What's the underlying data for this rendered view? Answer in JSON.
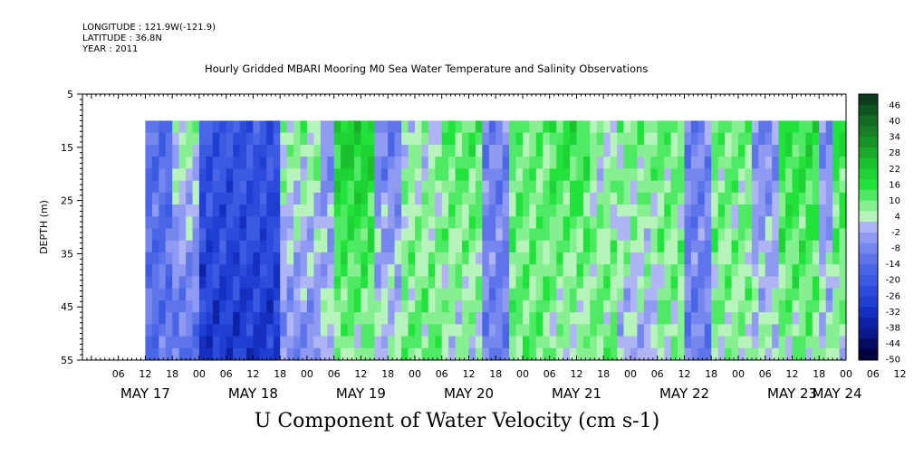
{
  "header": {
    "longitude": "LONGITUDE : 121.9W(-121.9)",
    "latitude": "LATITUDE : 36.8N",
    "year": "YEAR : 2011"
  },
  "chart_data": {
    "type": "heatmap",
    "title": "Hourly Gridded MBARI Mooring M0 Sea Water Temperature and Salinity Observations",
    "variable": "U Component of Water Velocity (cm s-1)",
    "ylabel": "DEPTH (m)",
    "ylim": [
      55,
      5
    ],
    "yticks": [
      5,
      15,
      25,
      35,
      45,
      55
    ],
    "xlim": [
      "2011-05-16T22:00",
      "2011-05-24T00:00"
    ],
    "data_start": "2011-05-17T12:00",
    "data_depth_range": [
      10,
      55
    ],
    "xtick_hours": [
      "06",
      "12",
      "18",
      "00",
      "06",
      "12",
      "18",
      "00",
      "06",
      "12",
      "18",
      "00",
      "06",
      "12",
      "18",
      "00",
      "06",
      "12",
      "18",
      "00",
      "06",
      "12",
      "18",
      "00",
      "06",
      "12",
      "18",
      "00",
      "06",
      "12",
      "18",
      "00"
    ],
    "xtick_days": [
      "MAY 17",
      "MAY 18",
      "MAY 19",
      "MAY 20",
      "MAY 21",
      "MAY 22",
      "MAY 23",
      "MAY 24"
    ],
    "colorbar": {
      "labels": [
        "46",
        "40",
        "34",
        "28",
        "22",
        "16",
        "10",
        "4",
        "-2",
        "-8",
        "-14",
        "-20",
        "-26",
        "-32",
        "-38",
        "-44",
        "-50"
      ],
      "colors": [
        "#0b3d1c",
        "#10551f",
        "#136b22",
        "#167f25",
        "#189426",
        "#1aab2a",
        "#1bc02d",
        "#1ed334",
        "#22e33c",
        "#4fea63",
        "#86ef90",
        "#b6f4bc",
        "#aeb4f4",
        "#8f9af2",
        "#7586ee",
        "#5d74ea",
        "#4a66e6",
        "#3a5ae2",
        "#2c4cdc",
        "#1f3fd2",
        "#1530c0",
        "#0e22a6",
        "#09188a",
        "#040c60",
        "#000040"
      ]
    },
    "segments": [
      {
        "from": "2011-05-17T12:00",
        "to": "2011-05-17T18:00",
        "surface": -14,
        "deep": -12
      },
      {
        "from": "2011-05-17T18:00",
        "to": "2011-05-18T00:00",
        "surface": 6,
        "deep": -14
      },
      {
        "from": "2011-05-18T00:00",
        "to": "2011-05-18T18:00",
        "surface": -20,
        "deep": -30
      },
      {
        "from": "2011-05-18T18:00",
        "to": "2011-05-19T03:00",
        "surface": 8,
        "deep": -8
      },
      {
        "from": "2011-05-19T03:00",
        "to": "2011-05-19T06:00",
        "surface": -8,
        "deep": 4
      },
      {
        "from": "2011-05-19T06:00",
        "to": "2011-05-19T15:00",
        "surface": 22,
        "deep": 6
      },
      {
        "from": "2011-05-19T15:00",
        "to": "2011-05-19T21:00",
        "surface": -10,
        "deep": 4
      },
      {
        "from": "2011-05-19T21:00",
        "to": "2011-05-20T06:00",
        "surface": 4,
        "deep": 10
      },
      {
        "from": "2011-05-20T06:00",
        "to": "2011-05-20T15:00",
        "surface": 12,
        "deep": 4
      },
      {
        "from": "2011-05-20T15:00",
        "to": "2011-05-20T21:00",
        "surface": -8,
        "deep": -10
      },
      {
        "from": "2011-05-20T21:00",
        "to": "2011-05-21T06:00",
        "surface": 10,
        "deep": 10
      },
      {
        "from": "2011-05-21T06:00",
        "to": "2011-05-21T15:00",
        "surface": 16,
        "deep": 4
      },
      {
        "from": "2011-05-21T15:00",
        "to": "2011-05-21T21:00",
        "surface": 4,
        "deep": 10
      },
      {
        "from": "2011-05-21T21:00",
        "to": "2011-05-22T06:00",
        "surface": 10,
        "deep": -2
      },
      {
        "from": "2011-05-22T06:00",
        "to": "2011-05-22T12:00",
        "surface": 10,
        "deep": 6
      },
      {
        "from": "2011-05-22T12:00",
        "to": "2011-05-22T18:00",
        "surface": -8,
        "deep": -10
      },
      {
        "from": "2011-05-22T18:00",
        "to": "2011-05-23T03:00",
        "surface": 10,
        "deep": 6
      },
      {
        "from": "2011-05-23T03:00",
        "to": "2011-05-23T09:00",
        "surface": -8,
        "deep": 4
      },
      {
        "from": "2011-05-23T09:00",
        "to": "2011-05-23T18:00",
        "surface": 16,
        "deep": 8
      },
      {
        "from": "2011-05-23T18:00",
        "to": "2011-05-23T21:00",
        "surface": -8,
        "deep": 4
      },
      {
        "from": "2011-05-23T21:00",
        "to": "2011-05-24T00:00",
        "surface": 16,
        "deep": 4
      }
    ]
  }
}
